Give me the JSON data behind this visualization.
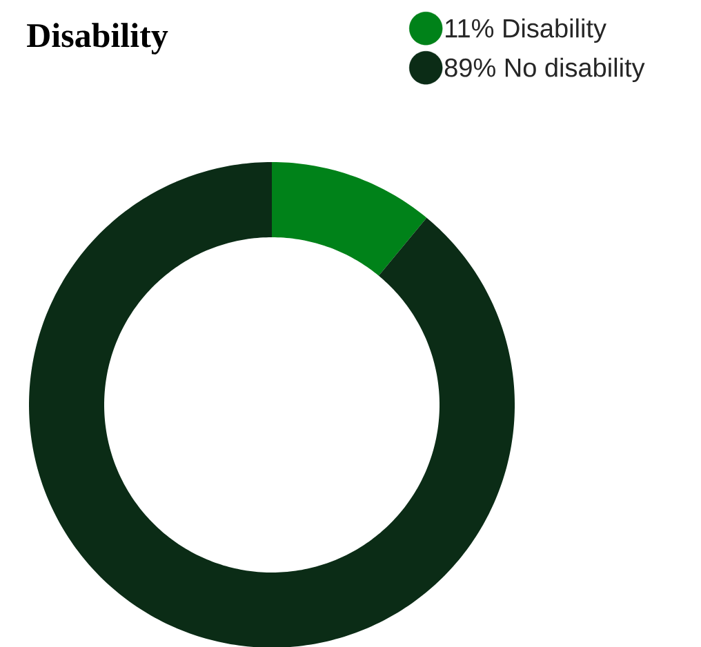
{
  "chart_data": {
    "type": "donut",
    "title": "Disability",
    "categories": [
      "Disability",
      "No disability"
    ],
    "values": [
      11,
      89
    ],
    "value_labels": [
      "11%",
      "89%"
    ],
    "colors": [
      "#008219",
      "#0b2c16"
    ],
    "legend": "top right"
  }
}
